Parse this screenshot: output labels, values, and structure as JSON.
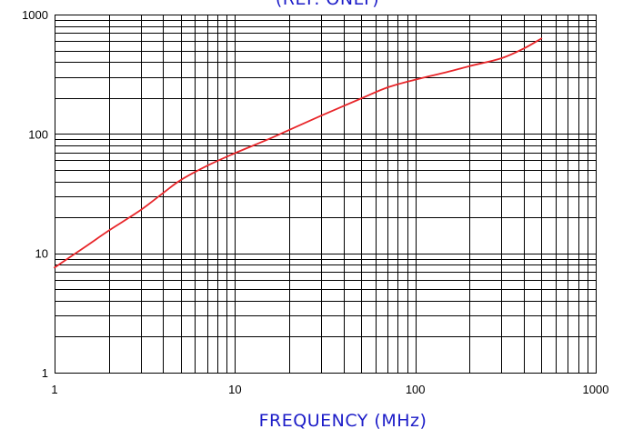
{
  "chart_data": {
    "type": "line",
    "title": "(REF. ONLY)",
    "xlabel": "FREQUENCY (MHz)",
    "ylabel": "",
    "x_scale": "log",
    "y_scale": "log",
    "xlim": [
      1,
      1000
    ],
    "ylim": [
      1,
      1000
    ],
    "x_ticks": [
      {
        "value": 1,
        "label": "1"
      },
      {
        "value": 10,
        "label": "10"
      },
      {
        "value": 100,
        "label": "100"
      },
      {
        "value": 1000,
        "label": "1000"
      }
    ],
    "y_ticks": [
      {
        "value": 1,
        "label": "1"
      },
      {
        "value": 10,
        "label": "10"
      },
      {
        "value": 100,
        "label": "100"
      },
      {
        "value": 1000,
        "label": "1000"
      }
    ],
    "grid": true,
    "series": [
      {
        "color": "#e8262a",
        "x": [
          1,
          1.5,
          2,
          3,
          4,
          5,
          7,
          10,
          15,
          20,
          30,
          50,
          70,
          100,
          150,
          200,
          300,
          400,
          500
        ],
        "y": [
          7.6,
          11.5,
          15.5,
          23,
          32,
          41,
          54,
          69,
          89,
          108,
          142,
          198,
          245,
          285,
          330,
          370,
          430,
          520,
          630
        ]
      }
    ]
  },
  "colors": {
    "line": "#e8262a",
    "text_blue": "#1c1cc8",
    "grid": "#000000"
  }
}
